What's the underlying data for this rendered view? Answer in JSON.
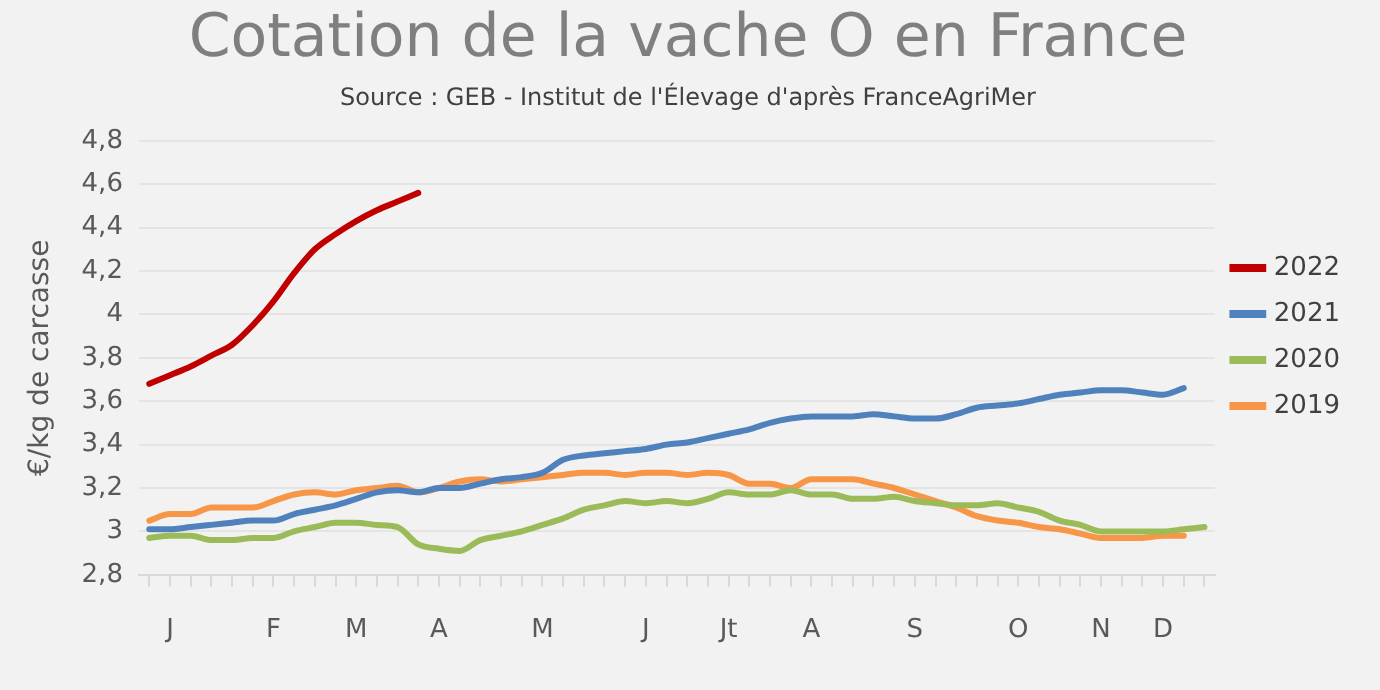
{
  "chart_data": {
    "type": "line",
    "title": "Cotation de la vache O en France",
    "annotations": [
      "Source : GEB - Institut de l'Élevage d'après FranceAgriMer"
    ],
    "ylabel": "€/kg de carcasse",
    "categories": [
      null,
      "J",
      null,
      null,
      null,
      null,
      "F",
      null,
      null,
      null,
      "M",
      null,
      null,
      null,
      "A",
      null,
      null,
      null,
      null,
      "M",
      null,
      null,
      null,
      null,
      "J",
      null,
      null,
      null,
      "Jt",
      null,
      null,
      null,
      "A",
      null,
      null,
      null,
      null,
      "S",
      null,
      null,
      null,
      null,
      "O",
      null,
      null,
      null,
      "N",
      null,
      null,
      "D",
      null,
      null
    ],
    "ylim": [
      2.8,
      4.8
    ],
    "yticks": [
      {
        "value": 2.8,
        "label": "2,8"
      },
      {
        "value": 3,
        "label": "3"
      },
      {
        "value": 3.2,
        "label": "3,2"
      },
      {
        "value": 3.4,
        "label": "3,4"
      },
      {
        "value": 3.6,
        "label": "3,6"
      },
      {
        "value": 3.8,
        "label": "3,8"
      },
      {
        "value": 4,
        "label": "4"
      },
      {
        "value": 4.2,
        "label": "4,2"
      },
      {
        "value": 4.4,
        "label": "4,4"
      },
      {
        "value": 4.6,
        "label": "4,6"
      },
      {
        "value": 4.8,
        "label": "4,8"
      }
    ],
    "grid": "y",
    "legend": "right",
    "marker": "none",
    "line_style": "solid",
    "series": [
      {
        "name": "2022",
        "color": "#c00000",
        "values": [
          3.68,
          3.72,
          3.76,
          3.81,
          3.86,
          3.95,
          4.06,
          4.19,
          4.3,
          4.37,
          4.43,
          4.48,
          4.52,
          4.56,
          null,
          null,
          null,
          null,
          null,
          null,
          null,
          null,
          null,
          null,
          null,
          null,
          null,
          null,
          null,
          null,
          null,
          null,
          null,
          null,
          null,
          null,
          null,
          null,
          null,
          null,
          null,
          null,
          null,
          null,
          null,
          null,
          null,
          null,
          null,
          null,
          null,
          null
        ]
      },
      {
        "name": "2021",
        "color": "#4f81bd",
        "values": [
          3.01,
          3.01,
          3.02,
          3.03,
          3.04,
          3.05,
          3.05,
          3.08,
          3.1,
          3.12,
          3.15,
          3.18,
          3.19,
          3.18,
          3.2,
          3.2,
          3.22,
          3.24,
          3.25,
          3.27,
          3.33,
          3.35,
          3.36,
          3.37,
          3.38,
          3.4,
          3.41,
          3.43,
          3.45,
          3.47,
          3.5,
          3.52,
          3.53,
          3.53,
          3.53,
          3.54,
          3.53,
          3.52,
          3.52,
          3.54,
          3.57,
          3.58,
          3.59,
          3.61,
          3.63,
          3.64,
          3.65,
          3.65,
          3.64,
          3.63,
          3.66,
          null
        ]
      },
      {
        "name": "2020",
        "color": "#9bbb59",
        "values": [
          2.97,
          2.98,
          2.98,
          2.96,
          2.96,
          2.97,
          2.97,
          3.0,
          3.02,
          3.04,
          3.04,
          3.03,
          3.02,
          2.94,
          2.92,
          2.91,
          2.96,
          2.98,
          3.0,
          3.03,
          3.06,
          3.1,
          3.12,
          3.14,
          3.13,
          3.14,
          3.13,
          3.15,
          3.18,
          3.17,
          3.17,
          3.19,
          3.17,
          3.17,
          3.15,
          3.15,
          3.16,
          3.14,
          3.13,
          3.12,
          3.12,
          3.13,
          3.11,
          3.09,
          3.05,
          3.03,
          3.0,
          3.0,
          3.0,
          3.0,
          3.01,
          3.02
        ]
      },
      {
        "name": "2019",
        "color": "#f79646",
        "values": [
          3.05,
          3.08,
          3.08,
          3.11,
          3.11,
          3.11,
          3.14,
          3.17,
          3.18,
          3.17,
          3.19,
          3.2,
          3.21,
          3.18,
          3.2,
          3.23,
          3.24,
          3.23,
          3.24,
          3.25,
          3.26,
          3.27,
          3.27,
          3.26,
          3.27,
          3.27,
          3.26,
          3.27,
          3.26,
          3.22,
          3.22,
          3.2,
          3.24,
          3.24,
          3.24,
          3.22,
          3.2,
          3.17,
          3.14,
          3.11,
          3.07,
          3.05,
          3.04,
          3.02,
          3.01,
          2.99,
          2.97,
          2.97,
          2.97,
          2.98,
          2.98,
          null
        ]
      }
    ]
  }
}
